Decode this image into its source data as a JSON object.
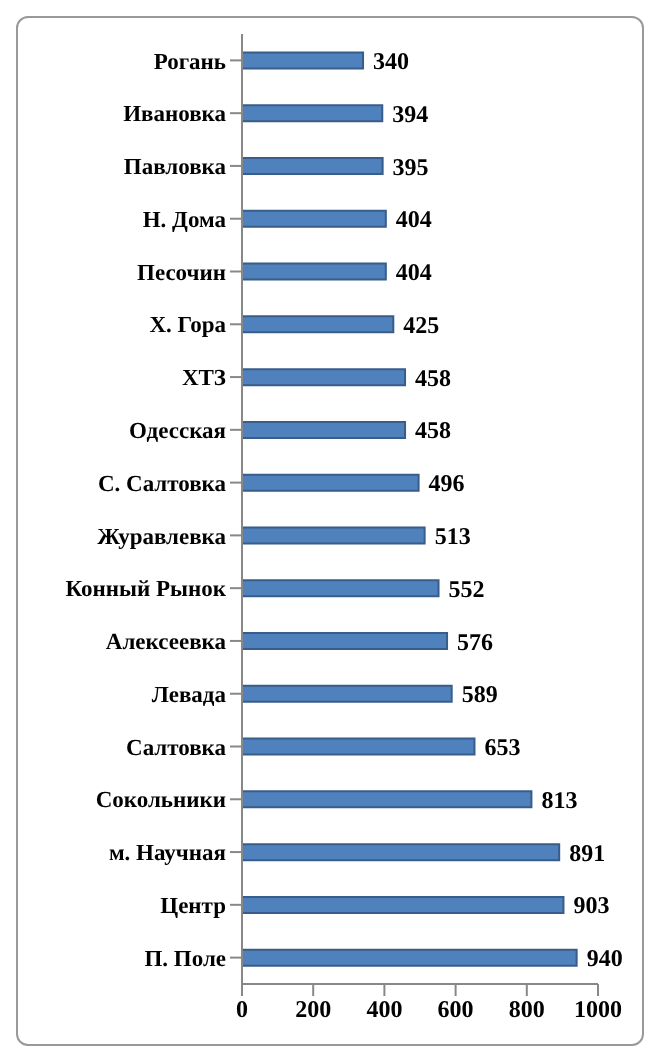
{
  "chart_data": {
    "type": "bar",
    "orientation": "horizontal",
    "categories": [
      "Рогань",
      "Ивановка",
      "Павловка",
      "Н. Дома",
      "Песочин",
      "Х. Гора",
      "ХТЗ",
      "Одесская",
      "С. Салтовка",
      "Журавлевка",
      "Конный Рынок",
      "Алексеевка",
      "Левада",
      "Салтовка",
      "Сокольники",
      "м. Научная",
      "Центр",
      "П. Поле"
    ],
    "values": [
      340,
      394,
      395,
      404,
      404,
      425,
      458,
      458,
      496,
      513,
      552,
      576,
      589,
      653,
      813,
      891,
      903,
      940
    ],
    "color": "#4f81bd",
    "xlim": [
      0,
      1000
    ],
    "xticks": [
      0,
      200,
      400,
      600,
      800,
      1000
    ],
    "data_labels": true
  }
}
